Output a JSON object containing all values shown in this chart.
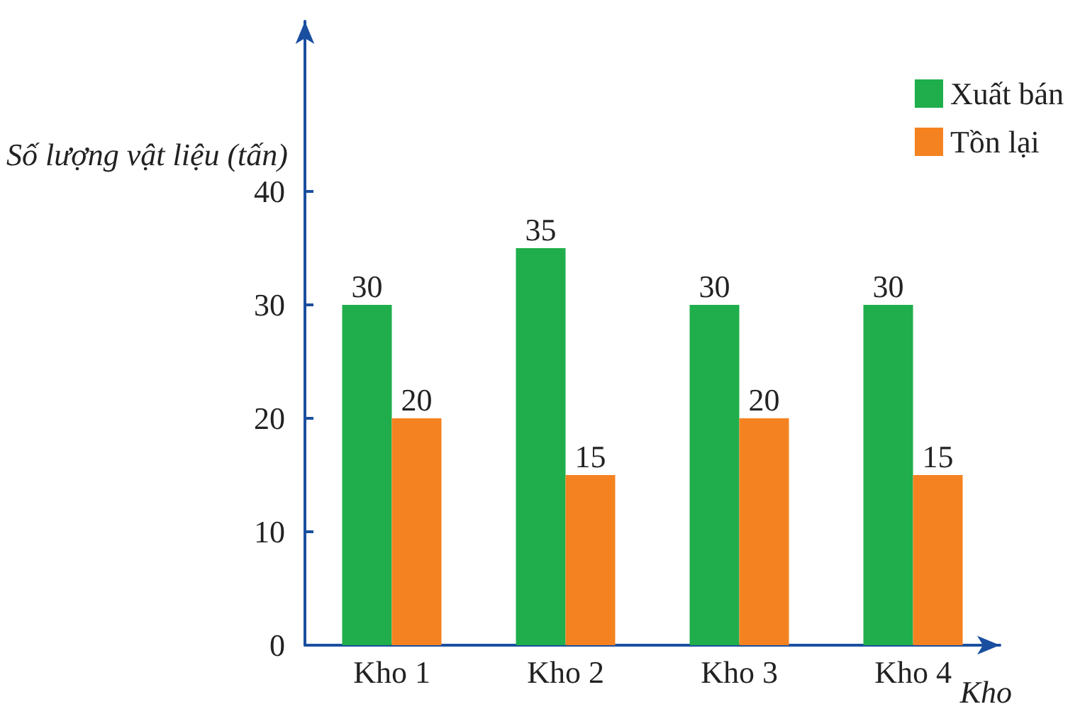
{
  "chart_data": {
    "type": "bar",
    "xlabel": "Kho",
    "ylabel": "Số lượng vật liệu (tấn)",
    "categories": [
      "Kho 1",
      "Kho 2",
      "Kho 3",
      "Kho 4"
    ],
    "series": [
      {
        "name": "Xuất bán",
        "color": "#1fae4b",
        "values": [
          30,
          35,
          30,
          30
        ]
      },
      {
        "name": "Tồn lại",
        "color": "#f58220",
        "values": [
          20,
          15,
          20,
          15
        ]
      }
    ],
    "ylim": [
      0,
      55
    ],
    "yticks": [
      0,
      10,
      20,
      30,
      40
    ],
    "grid": false,
    "legend": "top right",
    "data_labels": true
  }
}
